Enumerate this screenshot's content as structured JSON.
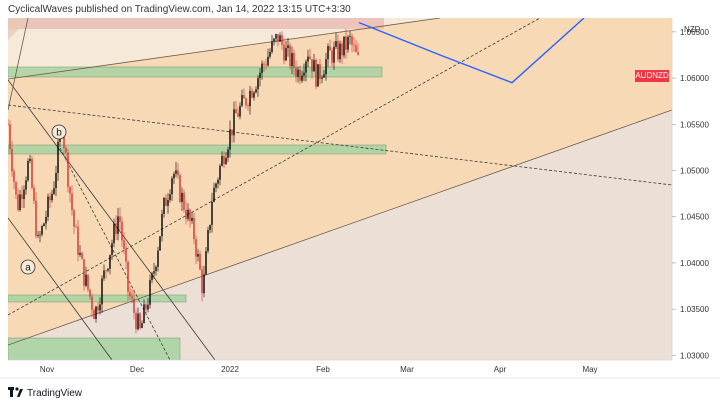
{
  "header": {
    "published_text": "CyclicalWaves published on TradingView.com, Jan 14, 2022 13:15 UTC+3:30"
  },
  "footer": {
    "brand": "TradingView"
  },
  "chart_data": {
    "type": "candlestick",
    "symbol": "AUDNZD",
    "currency_label": "NZD",
    "colors": {
      "bullish": "#000000",
      "bearish": "#d32f2f",
      "accent_tag": "#f23645",
      "projection": "#2962ff",
      "zone_green": "#8fc98f",
      "channel_fill": "#f7d9b6"
    },
    "y_axis": {
      "range": [
        1.0295,
        1.0665
      ],
      "ticks": [
        "1.03000",
        "1.03500",
        "1.04000",
        "1.04500",
        "1.05000",
        "1.05500",
        "1.06000",
        "1.06500"
      ]
    },
    "x_axis": {
      "ticks": [
        "Nov",
        "Dec",
        "2022",
        "Feb",
        "Mar",
        "Apr",
        "May"
      ]
    },
    "annotations": {
      "wave_a": "a",
      "wave_b": "b"
    },
    "price_path": [
      {
        "date": "2021-10-19",
        "price": 1.055
      },
      {
        "date": "2021-10-22",
        "price": 1.046
      },
      {
        "date": "2021-10-26",
        "price": 1.051
      },
      {
        "date": "2021-10-29",
        "price": 1.042
      },
      {
        "date": "2021-11-03",
        "price": 1.048
      },
      {
        "date": "2021-11-06",
        "price": 1.055
      },
      {
        "date": "2021-11-10",
        "price": 1.044
      },
      {
        "date": "2021-11-13",
        "price": 1.039
      },
      {
        "date": "2021-11-17",
        "price": 1.0345
      },
      {
        "date": "2021-11-21",
        "price": 1.04
      },
      {
        "date": "2021-11-25",
        "price": 1.0455
      },
      {
        "date": "2021-11-28",
        "price": 1.037
      },
      {
        "date": "2021-12-02",
        "price": 1.0325
      },
      {
        "date": "2021-12-06",
        "price": 1.038
      },
      {
        "date": "2021-12-10",
        "price": 1.046
      },
      {
        "date": "2021-12-13",
        "price": 1.05
      },
      {
        "date": "2021-12-17",
        "price": 1.046
      },
      {
        "date": "2021-12-20",
        "price": 1.043
      },
      {
        "date": "2021-12-23",
        "price": 1.037
      },
      {
        "date": "2021-12-26",
        "price": 1.047
      },
      {
        "date": "2021-12-30",
        "price": 1.052
      },
      {
        "date": "2022-01-03",
        "price": 1.056
      },
      {
        "date": "2022-01-06",
        "price": 1.0575
      },
      {
        "date": "2022-01-10",
        "price": 1.06
      },
      {
        "date": "2022-01-13",
        "price": 1.062
      },
      {
        "date": "2022-01-17",
        "price": 1.0645
      },
      {
        "date": "2022-01-20",
        "price": 1.0625
      },
      {
        "date": "2022-01-24",
        "price": 1.0605
      },
      {
        "date": "2022-01-27",
        "price": 1.063
      },
      {
        "date": "2022-01-30",
        "price": 1.06
      },
      {
        "date": "2022-02-03",
        "price": 1.0625
      },
      {
        "date": "2022-02-07",
        "price": 1.063
      },
      {
        "date": "2022-02-10",
        "price": 1.064
      },
      {
        "date": "2022-02-13",
        "price": 1.0615
      }
    ],
    "projection_path": [
      {
        "date": "2022-02-13",
        "price": 1.066
      },
      {
        "date": "2022-03-12",
        "price": 1.0625
      },
      {
        "date": "2022-04-05",
        "price": 1.0595
      },
      {
        "date": "2022-04-29",
        "price": 1.0665
      }
    ]
  }
}
